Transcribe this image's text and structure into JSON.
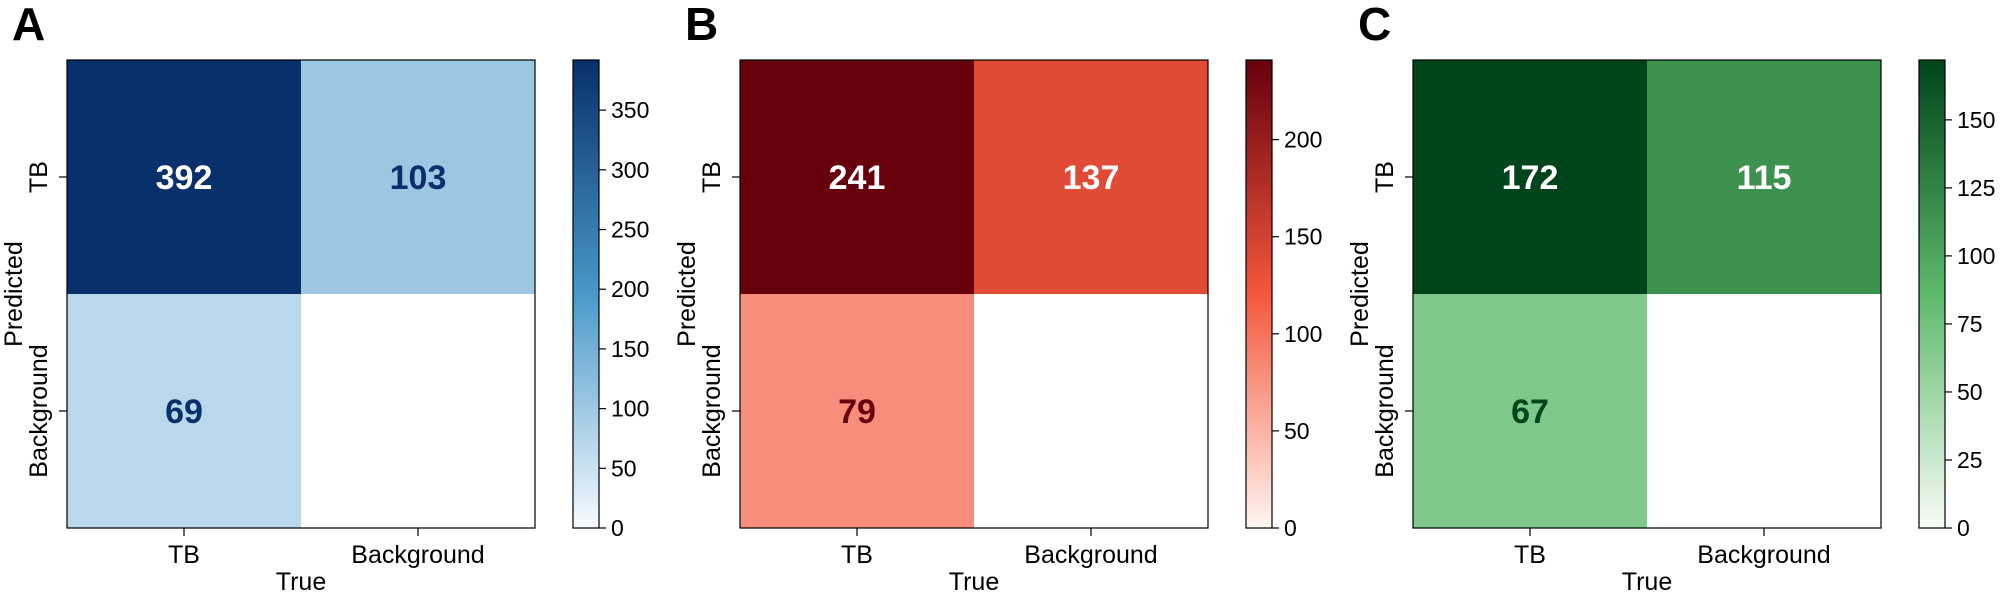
{
  "chart_data": [
    {
      "panel_label": "A",
      "type": "heatmap",
      "xlabel": "True",
      "ylabel": "Predicted",
      "x_categories": [
        "TB",
        "Background"
      ],
      "y_categories": [
        "TB",
        "Background"
      ],
      "values": [
        [
          392,
          103
        ],
        [
          69,
          null
        ]
      ],
      "colormap": "Blues",
      "colorbar": {
        "min": 0,
        "max": 392,
        "ticks": [
          0,
          50,
          100,
          150,
          200,
          250,
          300,
          350
        ]
      },
      "colors": {
        "low": "#f7fbff",
        "mid": "#4a98c9",
        "high": "#08306b"
      }
    },
    {
      "panel_label": "B",
      "type": "heatmap",
      "xlabel": "True",
      "ylabel": "Predicted",
      "x_categories": [
        "TB",
        "Background"
      ],
      "y_categories": [
        "TB",
        "Background"
      ],
      "values": [
        [
          241,
          137
        ],
        [
          79,
          null
        ]
      ],
      "colormap": "Reds",
      "colorbar": {
        "min": 0,
        "max": 241,
        "ticks": [
          0,
          50,
          100,
          150,
          200
        ]
      },
      "colors": {
        "low": "#fff5f0",
        "mid": "#f4573d",
        "high": "#67000d"
      }
    },
    {
      "panel_label": "C",
      "type": "heatmap",
      "xlabel": "True",
      "ylabel": "Predicted",
      "x_categories": [
        "TB",
        "Background"
      ],
      "y_categories": [
        "TB",
        "Background"
      ],
      "values": [
        [
          172,
          115
        ],
        [
          67,
          null
        ]
      ],
      "colormap": "Greens",
      "colorbar": {
        "min": 0,
        "max": 172,
        "ticks": [
          0,
          25,
          50,
          75,
          100,
          125,
          150
        ]
      },
      "colors": {
        "low": "#f7fcf5",
        "mid": "#5db96b",
        "high": "#00441b"
      }
    }
  ]
}
